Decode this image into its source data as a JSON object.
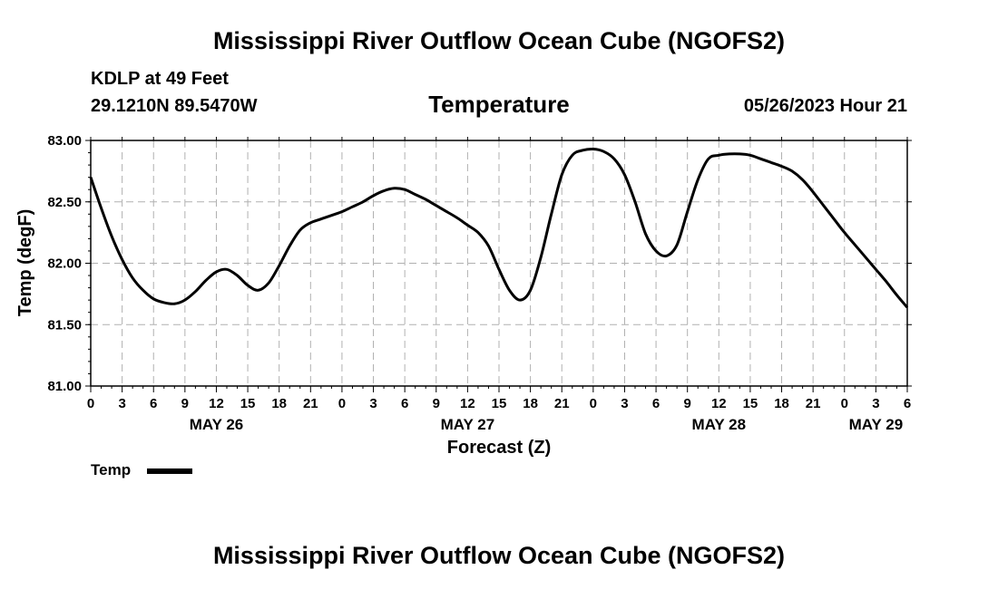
{
  "page": {
    "title": "Mississippi River Outflow Ocean Cube (NGOFS2)",
    "footer_title": "Mississippi River Outflow Ocean Cube (NGOFS2)",
    "station": "KDLP at 49 Feet",
    "coordinates": "29.1210N  89.5470W",
    "chart_title": "Temperature",
    "datetime": "05/26/2023 Hour 21"
  },
  "chart_data": {
    "type": "line",
    "title": "Temperature",
    "xlabel": "Forecast (Z)",
    "ylabel": "Temp (degF)",
    "ylim": [
      81.0,
      83.0
    ],
    "xlim": [
      0,
      78
    ],
    "y_ticks": [
      "81.00",
      "81.50",
      "82.00",
      "82.50",
      "83.00"
    ],
    "y_tick_values": [
      81.0,
      81.5,
      82.0,
      82.5,
      83.0
    ],
    "x_ticks": [
      "0",
      "3",
      "6",
      "9",
      "12",
      "15",
      "18",
      "21",
      "0",
      "3",
      "6",
      "9",
      "12",
      "15",
      "18",
      "21",
      "0",
      "3",
      "6",
      "9",
      "12",
      "15",
      "18",
      "21",
      "0",
      "3",
      "6"
    ],
    "date_labels": [
      {
        "label": "MAY 26",
        "hour": 12
      },
      {
        "label": "MAY 27",
        "hour": 36
      },
      {
        "label": "MAY 28",
        "hour": 60
      },
      {
        "label": "MAY 29",
        "hour": 75
      }
    ],
    "grid": true,
    "series": [
      {
        "name": "Temp",
        "color": "#000000",
        "x": [
          0,
          1,
          2,
          3,
          4,
          5,
          6,
          7,
          8,
          9,
          10,
          11,
          12,
          13,
          14,
          15,
          16,
          17,
          18,
          19,
          20,
          21,
          22,
          23,
          24,
          25,
          26,
          27,
          28,
          29,
          30,
          31,
          32,
          33,
          34,
          35,
          36,
          37,
          38,
          39,
          40,
          41,
          42,
          43,
          44,
          45,
          46,
          47,
          48,
          49,
          50,
          51,
          52,
          53,
          54,
          55,
          56,
          57,
          58,
          59,
          60,
          61,
          62,
          63,
          64,
          65,
          66,
          67,
          68,
          69,
          70,
          71,
          72,
          73,
          74,
          75,
          76,
          77,
          78
        ],
        "values": [
          82.7,
          82.45,
          82.22,
          82.03,
          81.88,
          81.78,
          81.71,
          81.68,
          81.67,
          81.7,
          81.77,
          81.86,
          81.93,
          81.95,
          81.9,
          81.82,
          81.78,
          81.84,
          81.98,
          82.14,
          82.27,
          82.33,
          82.36,
          82.39,
          82.42,
          82.46,
          82.5,
          82.55,
          82.59,
          82.61,
          82.6,
          82.56,
          82.52,
          82.47,
          82.42,
          82.37,
          82.31,
          82.25,
          82.14,
          81.95,
          81.78,
          81.7,
          81.78,
          82.05,
          82.4,
          82.72,
          82.88,
          82.92,
          82.93,
          82.91,
          82.85,
          82.72,
          82.5,
          82.24,
          82.1,
          82.06,
          82.15,
          82.42,
          82.68,
          82.85,
          82.88,
          82.89,
          82.89,
          82.88,
          82.85,
          82.82,
          82.79,
          82.75,
          82.68,
          82.58,
          82.47,
          82.36,
          82.25,
          82.15,
          82.05,
          81.95,
          81.85,
          81.74,
          81.64
        ]
      }
    ],
    "legend": [
      {
        "label": "Temp",
        "position": "bottom-left"
      }
    ]
  }
}
